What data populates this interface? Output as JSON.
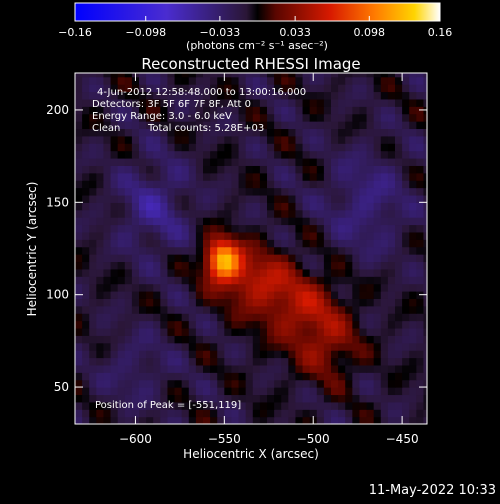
{
  "chart_data": {
    "type": "heatmap",
    "title": "Reconstructed RHESSI Image",
    "xlabel": "Heliocentric X (arcsec)",
    "ylabel": "Heliocentric Y (arcsec)",
    "xlim": [
      -634,
      -436
    ],
    "ylim": [
      30,
      220
    ],
    "xticks": [
      -600,
      -550,
      -500,
      -450
    ],
    "xtick_labels": [
      "−600",
      "−550",
      "−500",
      "−450"
    ],
    "yticks": [
      50,
      100,
      150,
      200
    ],
    "ytick_labels": [
      "50",
      "100",
      "150",
      "200"
    ],
    "colorbar": {
      "range": [
        -0.16,
        0.16
      ],
      "ticks": [
        -0.16,
        -0.098,
        -0.033,
        0.033,
        0.098,
        0.16
      ],
      "tick_labels": [
        "−0.16",
        "−0.098",
        "−0.033",
        "0.033",
        "0.098",
        "0.16"
      ],
      "unit_label": "(photons cm⁻² s⁻¹ asec⁻²)"
    },
    "peak": {
      "x": -551,
      "y": 119
    },
    "annotations": {
      "time_range": "4-Jun-2012 12:58:48.000 to 13:00:16.000",
      "detectors": "Detectors: 3F 5F 6F 7F 8F, Att 0",
      "energy": "Energy Range: 3.0 - 6.0 keV",
      "clean": "Clean",
      "total_counts": "Total counts: 5.28E+03",
      "peak_position": "Position of Peak = [-551,119]"
    }
  },
  "footer": {
    "timestamp": "11-May-2022 10:33"
  },
  "colors": {
    "background": "#000000",
    "foreground": "#ffffff"
  }
}
